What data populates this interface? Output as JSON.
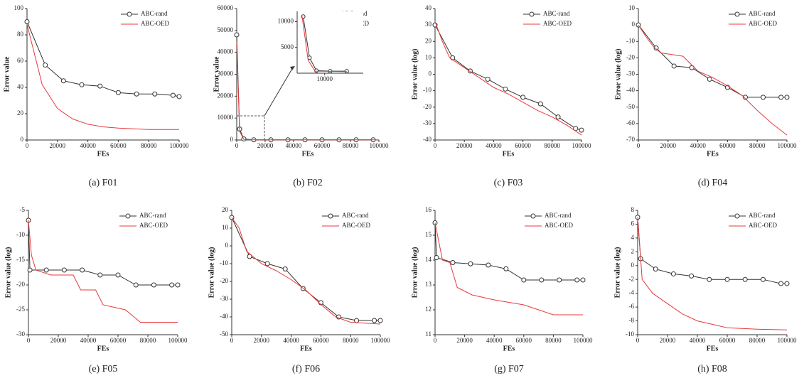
{
  "chart_data": [
    {
      "type": "line",
      "caption": "(a) F01",
      "x_label": "FEs",
      "y_label": "Error value",
      "xlim": [
        0,
        100000
      ],
      "ylim": [
        0,
        100
      ],
      "xticks": [
        0,
        20000,
        40000,
        60000,
        80000,
        100000
      ],
      "yticks": [
        0,
        20,
        40,
        60,
        80,
        100
      ],
      "legend": "upper right",
      "series": [
        {
          "name": "ABC-rand",
          "color": "#333333",
          "marker": "circle",
          "x": [
            0,
            12000,
            24000,
            36000,
            48000,
            60000,
            72000,
            84000,
            96000,
            100000
          ],
          "values": [
            90,
            57,
            45,
            42,
            41,
            36,
            35,
            35,
            34,
            33
          ]
        },
        {
          "name": "ABC-OED",
          "color": "#e8383d",
          "x": [
            0,
            5000,
            10000,
            15000,
            20000,
            30000,
            40000,
            50000,
            60000,
            80000,
            100000
          ],
          "values": [
            88,
            65,
            42,
            33,
            24,
            16,
            12,
            10,
            9,
            8,
            8
          ]
        }
      ]
    },
    {
      "type": "line",
      "caption": "(b) F02",
      "x_label": "FEs",
      "y_label": "Error value",
      "xlim": [
        0,
        100000
      ],
      "ylim": [
        0,
        60000
      ],
      "xticks": [
        0,
        20000,
        40000,
        60000,
        80000,
        100000
      ],
      "yticks": [
        0,
        10000,
        20000,
        30000,
        40000,
        50000,
        60000
      ],
      "legend": "upper right",
      "series": [
        {
          "name": "ABC-rand",
          "color": "#333333",
          "marker": "circle",
          "x": [
            0,
            2000,
            5000,
            12000,
            24000,
            36000,
            48000,
            60000,
            72000,
            84000,
            96000
          ],
          "values": [
            48000,
            5000,
            500,
            100,
            100,
            100,
            100,
            100,
            100,
            100,
            100
          ]
        },
        {
          "name": "ABC-OED",
          "color": "#e8383d",
          "x": [
            0,
            2000,
            5000,
            10000,
            100000
          ],
          "values": [
            45000,
            4000,
            300,
            100,
            100
          ]
        }
      ],
      "inset": {
        "xlim": [
          0,
          24000
        ],
        "ylim": [
          0,
          12000
        ],
        "xticks": [
          10000
        ],
        "yticks": [
          5000,
          10000
        ],
        "series": [
          {
            "color": "#333333",
            "marker": "circle",
            "x": [
              2200,
              4500,
              7000,
              12000,
              18000
            ],
            "values": [
              11000,
              3000,
              500,
              400,
              400
            ]
          },
          {
            "color": "#e8383d",
            "x": [
              1800,
              4000,
              6500,
              18000
            ],
            "values": [
              11000,
              2500,
              400,
              300
            ]
          }
        ]
      }
    },
    {
      "type": "line",
      "caption": "(c) F03",
      "x_label": "FEs",
      "y_label": "Error value (log)",
      "xlim": [
        0,
        100000
      ],
      "ylim": [
        -40,
        40
      ],
      "xticks": [
        0,
        20000,
        40000,
        60000,
        80000,
        100000
      ],
      "yticks": [
        -40,
        -30,
        -20,
        -10,
        0,
        10,
        20,
        30,
        40
      ],
      "legend": "upper right",
      "series": [
        {
          "name": "ABC-rand",
          "color": "#333333",
          "marker": "circle",
          "x": [
            0,
            12000,
            24000,
            36000,
            48000,
            60000,
            72000,
            84000,
            96000,
            100000
          ],
          "values": [
            30,
            10,
            2,
            -3,
            -9,
            -14,
            -18,
            -26,
            -33,
            -34
          ]
        },
        {
          "name": "ABC-OED",
          "color": "#e8383d",
          "x": [
            0,
            5000,
            10000,
            20000,
            30000,
            40000,
            50000,
            60000,
            70000,
            80000,
            90000,
            100000
          ],
          "values": [
            32,
            20,
            10,
            4,
            -2,
            -8,
            -12,
            -17,
            -22,
            -26,
            -31,
            -37
          ]
        }
      ]
    },
    {
      "type": "line",
      "caption": "(d) F04",
      "x_label": "FEs",
      "y_label": "Error value (log)",
      "xlim": [
        0,
        100000
      ],
      "ylim": [
        -70,
        10
      ],
      "xticks": [
        0,
        20000,
        40000,
        60000,
        80000,
        100000
      ],
      "yticks": [
        -70,
        -60,
        -50,
        -40,
        -30,
        -20,
        -10,
        0,
        10
      ],
      "legend": "upper right",
      "series": [
        {
          "name": "ABC-rand",
          "color": "#333333",
          "marker": "circle",
          "x": [
            0,
            12000,
            24000,
            36000,
            48000,
            60000,
            72000,
            84000,
            96000,
            100000
          ],
          "values": [
            0,
            -14,
            -25,
            -26,
            -33,
            -38,
            -44,
            -44,
            -44,
            -44
          ]
        },
        {
          "name": "ABC-OED",
          "color": "#e8383d",
          "x": [
            0,
            5000,
            10000,
            15000,
            30000,
            40000,
            50000,
            60000,
            70000,
            80000,
            90000,
            100000
          ],
          "values": [
            0,
            -7,
            -13,
            -17,
            -19,
            -28,
            -32,
            -37,
            -43,
            -52,
            -60,
            -67
          ]
        }
      ]
    },
    {
      "type": "line",
      "caption": "(e) F05",
      "x_label": "FEs",
      "y_label": "Error value (log)",
      "xlim": [
        0,
        100000
      ],
      "ylim": [
        -30,
        -5
      ],
      "xticks": [
        0,
        20000,
        40000,
        60000,
        80000,
        100000
      ],
      "yticks": [
        -30,
        -25,
        -20,
        -15,
        -10,
        -5
      ],
      "legend": "upper right",
      "series": [
        {
          "name": "ABC-rand",
          "color": "#333333",
          "marker": "circle",
          "x": [
            0,
            1000,
            12000,
            24000,
            36000,
            48000,
            60000,
            72000,
            84000,
            96000,
            100000
          ],
          "values": [
            -7,
            -17,
            -17,
            -17,
            -17,
            -18,
            -18,
            -20,
            -20,
            -20,
            -20
          ]
        },
        {
          "name": "ABC-OED",
          "color": "#e8383d",
          "x": [
            0,
            2000,
            5000,
            15000,
            30000,
            35000,
            45000,
            50000,
            65000,
            75000,
            100000
          ],
          "values": [
            -7,
            -14,
            -17,
            -18,
            -18,
            -21,
            -21,
            -24,
            -25,
            -27.5,
            -27.5
          ]
        }
      ]
    },
    {
      "type": "line",
      "caption": "(f) F06",
      "x_label": "FEs",
      "y_label": "Error value (log)",
      "xlim": [
        0,
        100000
      ],
      "ylim": [
        -50,
        20
      ],
      "xticks": [
        0,
        20000,
        40000,
        60000,
        80000,
        100000
      ],
      "yticks": [
        -50,
        -40,
        -30,
        -20,
        -10,
        0,
        10,
        20
      ],
      "legend": "upper right",
      "series": [
        {
          "name": "ABC-rand",
          "color": "#333333",
          "marker": "circle",
          "x": [
            0,
            12000,
            24000,
            36000,
            48000,
            60000,
            72000,
            84000,
            96000,
            100000
          ],
          "values": [
            16,
            -6,
            -10,
            -13,
            -24,
            -32,
            -40,
            -42,
            -42,
            -42
          ]
        },
        {
          "name": "ABC-OED",
          "color": "#e8383d",
          "x": [
            0,
            5000,
            10000,
            20000,
            30000,
            40000,
            50000,
            60000,
            70000,
            80000,
            100000
          ],
          "values": [
            16,
            10,
            -3,
            -10,
            -14,
            -19,
            -25,
            -33,
            -40,
            -43,
            -44
          ]
        }
      ]
    },
    {
      "type": "line",
      "caption": "(g) F07",
      "x_label": "FEs",
      "y_label": "Error value (log)",
      "xlim": [
        0,
        100000
      ],
      "ylim": [
        11,
        16
      ],
      "xticks": [
        0,
        20000,
        40000,
        60000,
        80000,
        100000
      ],
      "yticks": [
        11,
        12,
        13,
        14,
        15,
        16
      ],
      "legend": "upper right",
      "series": [
        {
          "name": "ABC-rand",
          "color": "#333333",
          "marker": "circle",
          "x": [
            0,
            1000,
            12000,
            24000,
            36000,
            48000,
            60000,
            72000,
            84000,
            96000,
            100000
          ],
          "values": [
            15.5,
            14.1,
            13.9,
            13.85,
            13.8,
            13.65,
            13.2,
            13.2,
            13.2,
            13.2,
            13.2
          ]
        },
        {
          "name": "ABC-OED",
          "color": "#e8383d",
          "x": [
            0,
            5000,
            10000,
            15000,
            25000,
            40000,
            60000,
            70000,
            80000,
            100000
          ],
          "values": [
            15.5,
            14,
            13.9,
            12.9,
            12.6,
            12.4,
            12.2,
            12,
            11.8,
            11.8
          ]
        }
      ]
    },
    {
      "type": "line",
      "caption": "(h) F08",
      "x_label": "FEs",
      "y_label": "Error value (log)",
      "xlim": [
        0,
        100000
      ],
      "ylim": [
        -10,
        8
      ],
      "xticks": [
        0,
        20000,
        40000,
        60000,
        80000,
        100000
      ],
      "yticks": [
        -10,
        -8,
        -6,
        -4,
        -2,
        0,
        2,
        4,
        6,
        8
      ],
      "legend": "upper right",
      "series": [
        {
          "name": "ABC-rand",
          "color": "#333333",
          "marker": "circle",
          "x": [
            0,
            2000,
            12000,
            24000,
            36000,
            48000,
            60000,
            72000,
            84000,
            96000,
            100000
          ],
          "values": [
            7,
            1,
            -0.5,
            -1.2,
            -1.5,
            -2,
            -2,
            -2,
            -2,
            -2.6,
            -2.6
          ]
        },
        {
          "name": "ABC-OED",
          "color": "#e8383d",
          "x": [
            0,
            3000,
            10000,
            20000,
            30000,
            40000,
            50000,
            60000,
            80000,
            100000
          ],
          "values": [
            7,
            -2,
            -4,
            -5.5,
            -7,
            -8,
            -8.5,
            -9,
            -9.2,
            -9.3
          ]
        }
      ]
    }
  ]
}
